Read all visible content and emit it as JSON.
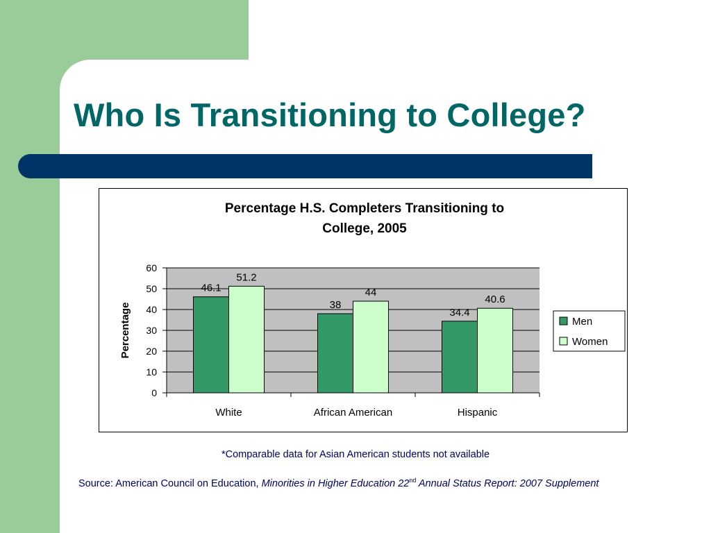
{
  "slide": {
    "title": "Who Is Transitioning to College?",
    "note": "*Comparable data for Asian American students not available",
    "source_prefix": "Source: American Council on Education, ",
    "source_italic_1": "Minorities in Higher Education 22",
    "source_sup": "nd",
    "source_italic_2": " Annual Status Report: 2007 Supplement",
    "colors": {
      "green_panel": "#99cc99",
      "title": "#006666",
      "blue_bar": "#003366",
      "text_blue": "#000066"
    }
  },
  "chart_data": {
    "type": "bar",
    "title_line1": "Percentage H.S. Completers Transitioning to",
    "title_line2": "College, 2005",
    "ylabel": "Percentage",
    "xlabel": "",
    "categories": [
      "White",
      "African American",
      "Hispanic"
    ],
    "series": [
      {
        "name": "Men",
        "values": [
          46.1,
          38,
          34.4
        ],
        "labels": [
          "46.1",
          "38",
          "34.4"
        ],
        "color": "#339966"
      },
      {
        "name": "Women",
        "values": [
          51.2,
          44,
          40.6
        ],
        "labels": [
          "51.2",
          "44",
          "40.6"
        ],
        "color": "#ccffcc"
      }
    ],
    "ylim": [
      0,
      60
    ],
    "yticks": [
      0,
      10,
      20,
      30,
      40,
      50,
      60
    ],
    "grid": true,
    "plot_background": "#c0c0c0",
    "legend_position": "right"
  }
}
